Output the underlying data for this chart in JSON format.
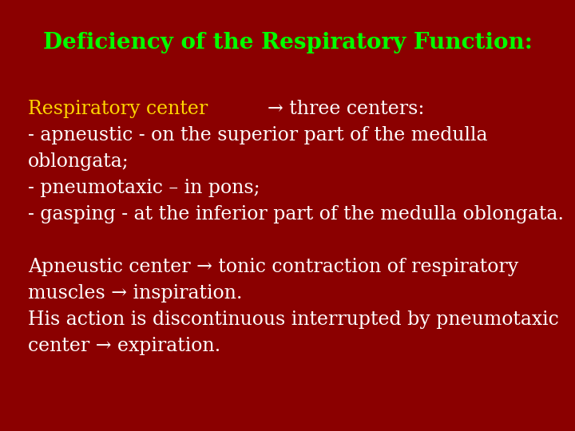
{
  "background_color": "#8B0000",
  "title": "Deficiency of the Respiratory Function:",
  "title_color": "#00FF00",
  "title_fontsize": 20,
  "body_text_color": "#FFFFFF",
  "yellow_text": "Respiratory center ",
  "yellow_color": "#FFD700",
  "line1_suffix": "→ three centers:",
  "line2": "- apneustic - on the superior part of the medulla",
  "line3": "oblongata;",
  "line4": "- pneumotaxic – in pons;",
  "line5": "- gasping - at the inferior part of the medulla oblongata.",
  "line6": "",
  "line7": "Apneustic center → tonic contraction of respiratory",
  "line8": "muscles → inspiration.",
  "line9": "His action is discontinuous interrupted by pneumotaxic",
  "line10": "center → expiration.",
  "body_fontsize": 17,
  "figsize": [
    7.2,
    5.4
  ],
  "dpi": 100
}
